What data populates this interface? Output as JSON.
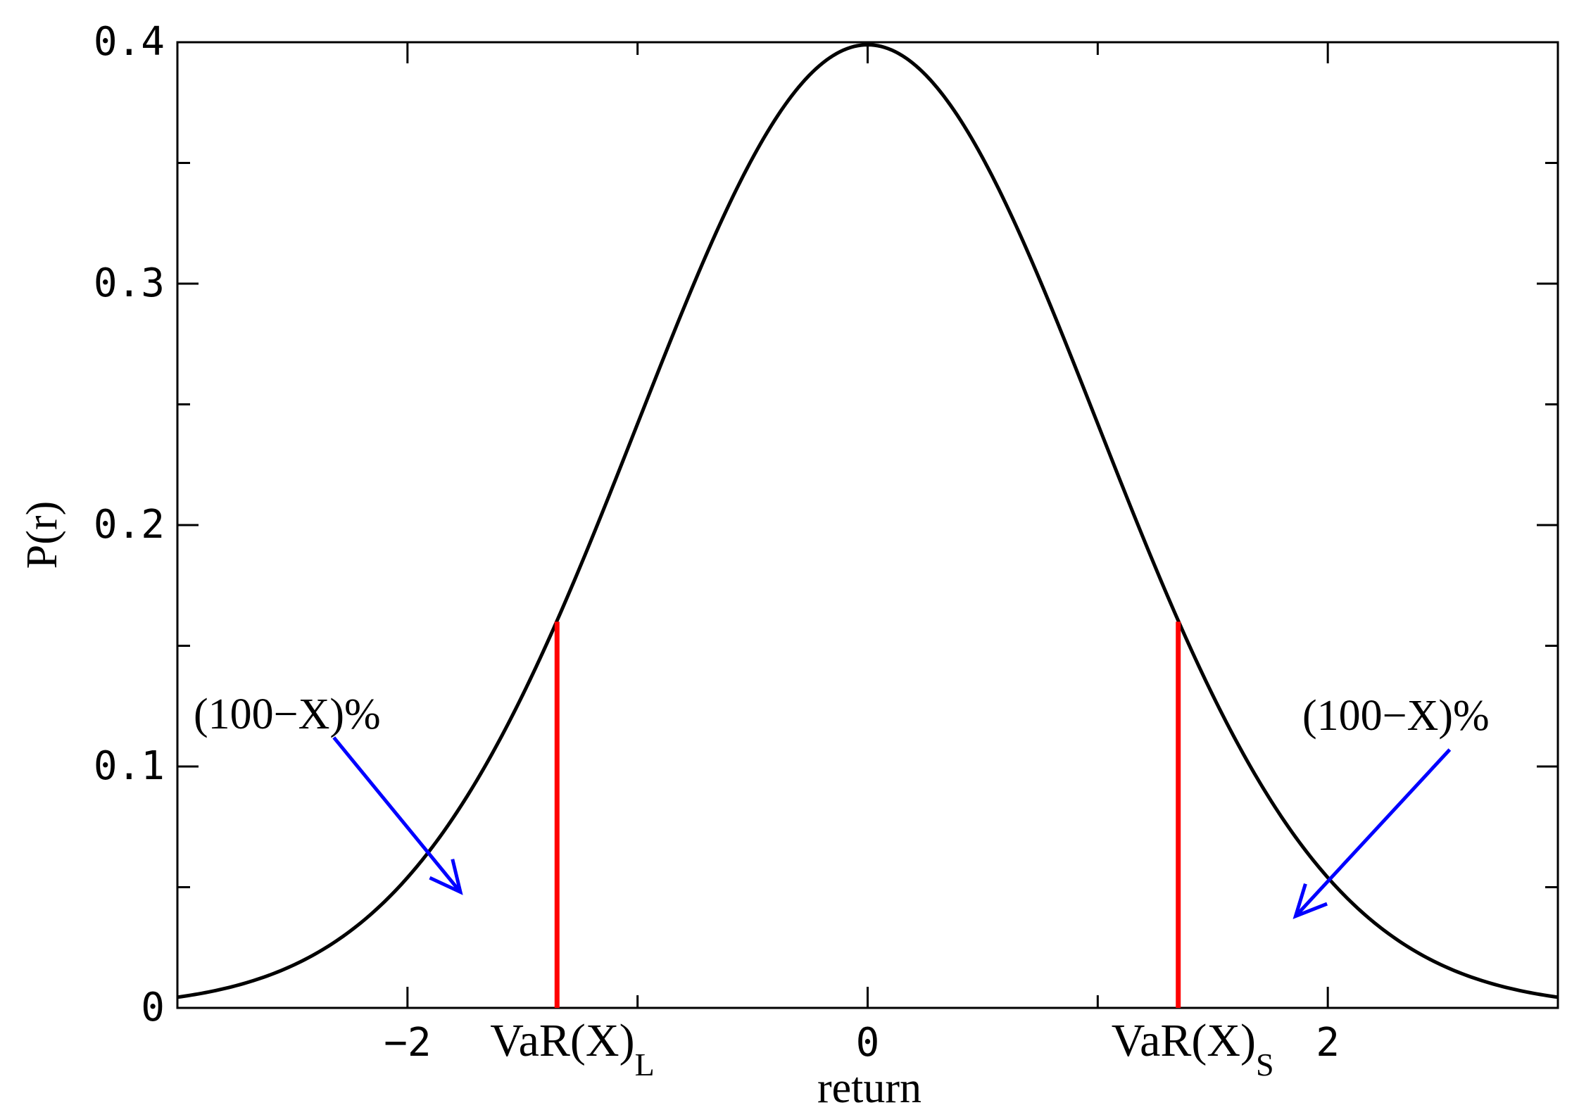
{
  "chart_data": {
    "type": "line",
    "xlabel": "return",
    "ylabel": "P(r)",
    "xlim": [
      -3.0,
      3.0
    ],
    "ylim": [
      0,
      0.4
    ],
    "x_ticks": [
      {
        "value": -2,
        "label": "−2"
      },
      {
        "value": 0,
        "label": "0"
      },
      {
        "value": 2,
        "label": "2"
      }
    ],
    "y_ticks": [
      {
        "value": 0,
        "label": "0"
      },
      {
        "value": 0.1,
        "label": "0.1"
      },
      {
        "value": 0.2,
        "label": "0.2"
      },
      {
        "value": 0.3,
        "label": "0.3"
      },
      {
        "value": 0.4,
        "label": "0.4"
      }
    ],
    "x_minor_step": 1,
    "y_minor_step": 0.05,
    "grid": false,
    "series": [
      {
        "curve": "standard normal density",
        "mean": 0,
        "std": 1,
        "color": "#000000"
      }
    ],
    "var_lines": [
      {
        "x": -1.35,
        "ymax": 0.16,
        "color": "#ff0000",
        "label_main": "VaR(X)",
        "label_sub": "L"
      },
      {
        "x": 1.35,
        "ymax": 0.16,
        "color": "#ff0000",
        "label_main": "VaR(X)",
        "label_sub": "S"
      }
    ],
    "annotations": [
      {
        "text": "(100−X)%",
        "side": "left",
        "arrow_from": [
          -2.32,
          0.112
        ],
        "arrow_to": [
          -1.77,
          0.048
        ],
        "color": "#0000ff"
      },
      {
        "text": "(100−X)%",
        "side": "right",
        "arrow_from": [
          2.53,
          0.107
        ],
        "arrow_to": [
          1.86,
          0.038
        ],
        "color": "#0000ff"
      }
    ]
  }
}
